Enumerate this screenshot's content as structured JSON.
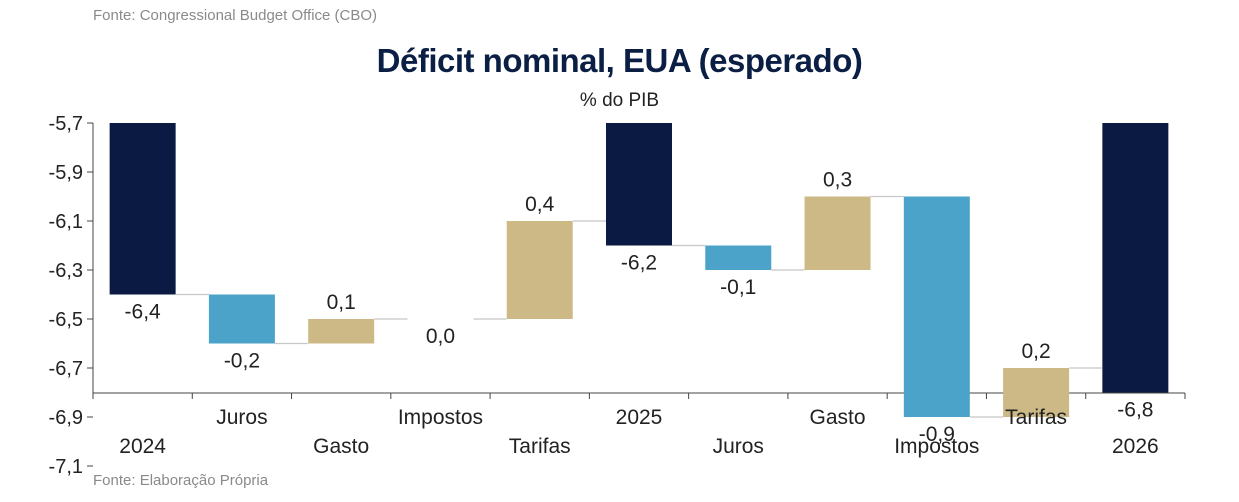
{
  "source_top": "Fonte: Congressional Budget Office (CBO)",
  "source_bottom": "Fonte: Elaboração Própria",
  "colors": {
    "total": "#0b1a42",
    "decrease": "#4ba3c9",
    "increase": "#cdb985",
    "axis": "#444444",
    "connector": "#c8c8c8"
  },
  "chart_data": {
    "type": "waterfall",
    "title": "Déficit nominal, EUA (esperado)",
    "subtitle": "% do PIB",
    "ylim": [
      -7.2,
      -5.7
    ],
    "yticks": [
      -5.7,
      -5.9,
      -6.1,
      -6.3,
      -6.5,
      -6.7,
      -6.9,
      -7.1
    ],
    "ytick_labels": [
      "-5,7",
      "-5,9",
      "-6,1",
      "-6,3",
      "-6,5",
      "-6,7",
      "-6,9",
      "-7,1"
    ],
    "categories": [
      "2024",
      "Juros",
      "Gasto",
      "Impostos",
      "Tarifas",
      "2025",
      "Juros",
      "Gasto",
      "Impostos",
      "Tarifas",
      "2026"
    ],
    "bars": [
      {
        "category": "2024",
        "kind": "total",
        "value": -6.4,
        "label": "-6,4"
      },
      {
        "category": "Juros",
        "kind": "decrease",
        "value": -0.2,
        "label": "-0,2"
      },
      {
        "category": "Gasto",
        "kind": "increase",
        "value": 0.1,
        "label": "0,1"
      },
      {
        "category": "Impostos",
        "kind": "increase",
        "value": 0.0,
        "label": "0,0"
      },
      {
        "category": "Tarifas",
        "kind": "increase",
        "value": 0.4,
        "label": "0,4"
      },
      {
        "category": "2025",
        "kind": "total",
        "value": -6.2,
        "label": "-6,2"
      },
      {
        "category": "Juros",
        "kind": "decrease",
        "value": -0.1,
        "label": "-0,1"
      },
      {
        "category": "Gasto",
        "kind": "increase",
        "value": 0.3,
        "label": "0,3"
      },
      {
        "category": "Impostos",
        "kind": "decrease",
        "value": -0.9,
        "label": "-0,9"
      },
      {
        "category": "Tarifas",
        "kind": "increase",
        "value": 0.2,
        "label": "0,2"
      },
      {
        "category": "2026",
        "kind": "total",
        "value": -6.8,
        "label": "-6,8"
      }
    ]
  }
}
